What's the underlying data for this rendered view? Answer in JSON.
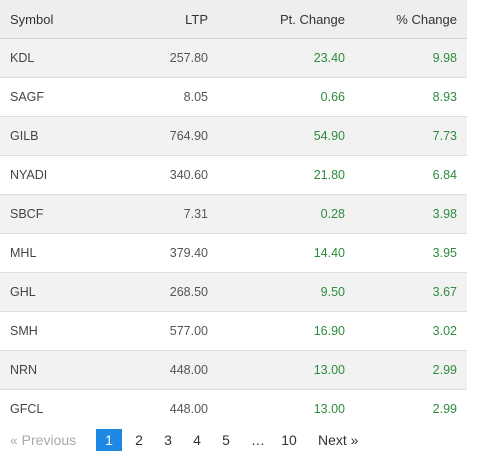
{
  "table": {
    "headers": {
      "symbol": "Symbol",
      "ltp": "LTP",
      "pt_change": "Pt. Change",
      "pct_change": "% Change"
    },
    "rows": [
      {
        "symbol": "KDL",
        "ltp": "257.80",
        "pt_change": "23.40",
        "pct_change": "9.98"
      },
      {
        "symbol": "SAGF",
        "ltp": "8.05",
        "pt_change": "0.66",
        "pct_change": "8.93"
      },
      {
        "symbol": "GILB",
        "ltp": "764.90",
        "pt_change": "54.90",
        "pct_change": "7.73"
      },
      {
        "symbol": "NYADI",
        "ltp": "340.60",
        "pt_change": "21.80",
        "pct_change": "6.84"
      },
      {
        "symbol": "SBCF",
        "ltp": "7.31",
        "pt_change": "0.28",
        "pct_change": "3.98"
      },
      {
        "symbol": "MHL",
        "ltp": "379.40",
        "pt_change": "14.40",
        "pct_change": "3.95"
      },
      {
        "symbol": "GHL",
        "ltp": "268.50",
        "pt_change": "9.50",
        "pct_change": "3.67"
      },
      {
        "symbol": "SMH",
        "ltp": "577.00",
        "pt_change": "16.90",
        "pct_change": "3.02"
      },
      {
        "symbol": "NRN",
        "ltp": "448.00",
        "pt_change": "13.00",
        "pct_change": "2.99"
      },
      {
        "symbol": "GFCL",
        "ltp": "448.00",
        "pt_change": "13.00",
        "pct_change": "2.99"
      }
    ]
  },
  "pagination": {
    "previous_label": "« Previous",
    "pages": [
      "1",
      "2",
      "3",
      "4",
      "5"
    ],
    "ellipsis": "…",
    "last_page": "10",
    "next_label": "Next »",
    "active_page": "1"
  },
  "colors": {
    "positive": "#2e8b3e",
    "active_page_bg": "#1e88e5",
    "header_bg": "#eeeeee",
    "stripe_bg": "#f2f2f2"
  }
}
